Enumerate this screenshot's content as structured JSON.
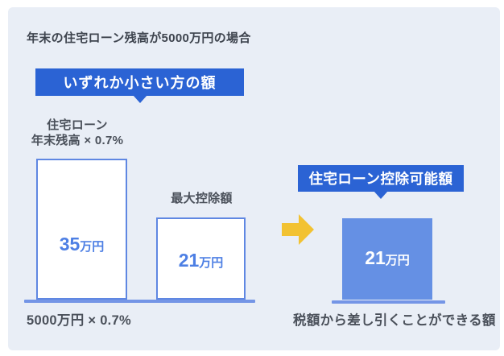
{
  "colors": {
    "panel_bg": "#e9eef6",
    "badge_blue": "#2b63d4",
    "bar_blue": "#6590e4",
    "bar_border": "#5f87e2",
    "baseline_blue": "#7495e6",
    "value_blue": "#4d7fe4",
    "arrow_yellow": "#f2c232",
    "text_dark": "#3e444e",
    "text_gray": "#4a505a"
  },
  "title": "年末の住宅ローン残高が5000万円の場合",
  "callouts": {
    "smaller_amount": "いずれか小さい方の額",
    "deductible_amount": "住宅ローン控除可能額"
  },
  "bars": {
    "loan_calc": {
      "label_line1": "住宅ローン",
      "label_line2": "年末残高 × 0.7%",
      "value": "35",
      "unit": "万円",
      "caption": "5000万円 × 0.7%"
    },
    "max_deduction": {
      "label": "最大控除額",
      "value": "21",
      "unit": "万円"
    },
    "deductible": {
      "value": "21",
      "unit": "万円",
      "caption": "税額から差し引くことができる額"
    }
  }
}
